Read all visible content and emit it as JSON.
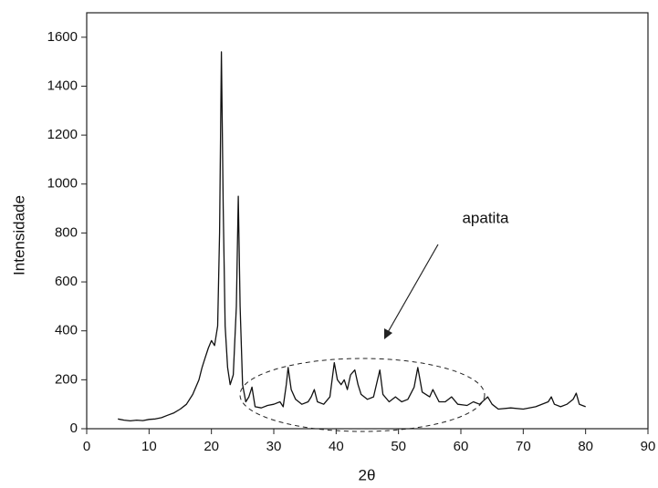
{
  "chart_data": {
    "type": "line",
    "xlabel": "2θ",
    "ylabel": "Intensidade",
    "annotation": "apatita",
    "x": [
      5,
      6,
      7,
      8,
      9,
      10,
      11,
      12,
      13,
      14,
      15,
      16,
      17,
      18,
      18.5,
      19,
      19.5,
      20,
      20.5,
      21,
      21.3,
      21.6,
      21.9,
      22.2,
      22.6,
      23,
      23.5,
      24,
      24.3,
      24.6,
      25,
      25.5,
      26,
      26.5,
      27,
      28,
      29,
      30,
      31,
      31.5,
      32,
      32.3,
      32.8,
      33.5,
      34.5,
      35.5,
      36,
      36.5,
      37,
      38,
      39,
      39.7,
      40.2,
      40.8,
      41.3,
      41.8,
      42.3,
      43,
      43.5,
      44,
      45,
      46,
      47,
      47.5,
      48.5,
      49.5,
      50.5,
      51.5,
      52.5,
      53.1,
      53.8,
      55,
      55.5,
      56.5,
      57.5,
      58.5,
      59.5,
      61,
      62,
      63,
      64.3,
      65,
      66,
      68,
      70,
      72,
      74,
      74.5,
      75,
      76,
      77,
      78,
      78.5,
      79,
      80
    ],
    "series": [
      {
        "color": "#111111",
        "values": [
          40,
          35,
          32,
          35,
          33,
          38,
          40,
          45,
          55,
          65,
          80,
          100,
          140,
          200,
          250,
          290,
          330,
          360,
          340,
          420,
          800,
          1540,
          900,
          420,
          250,
          180,
          220,
          500,
          950,
          500,
          180,
          110,
          130,
          170,
          90,
          85,
          95,
          100,
          110,
          90,
          180,
          250,
          160,
          120,
          100,
          110,
          130,
          160,
          110,
          100,
          130,
          270,
          200,
          180,
          200,
          160,
          220,
          240,
          180,
          140,
          120,
          130,
          240,
          140,
          110,
          130,
          110,
          120,
          170,
          250,
          150,
          130,
          160,
          110,
          110,
          130,
          100,
          95,
          110,
          100,
          130,
          100,
          80,
          85,
          80,
          90,
          110,
          130,
          100,
          90,
          100,
          120,
          145,
          100,
          90
        ]
      }
    ],
    "xlim": [
      0,
      90
    ],
    "ylim": [
      0,
      1700
    ],
    "xticks": [
      0,
      10,
      20,
      30,
      40,
      50,
      60,
      70,
      80,
      90
    ],
    "yticks": [
      0,
      200,
      400,
      600,
      800,
      1000,
      1200,
      1400,
      1600
    ]
  }
}
